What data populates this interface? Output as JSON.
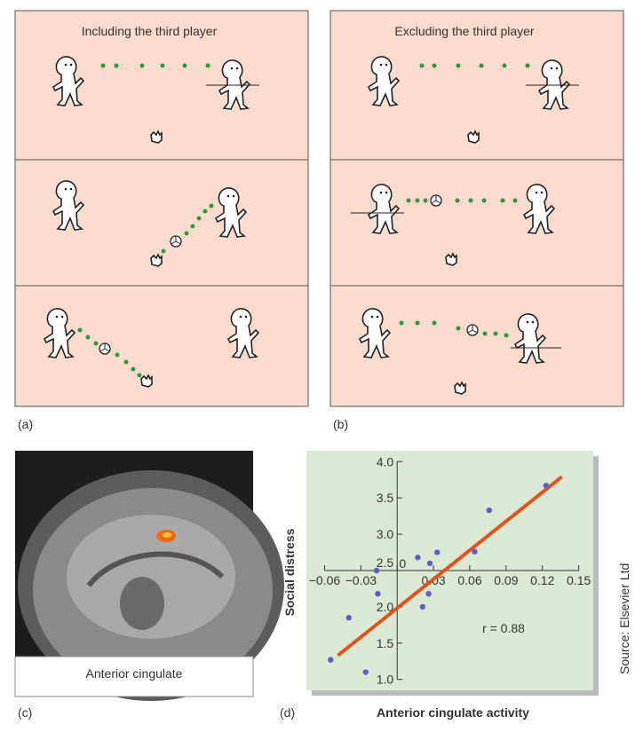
{
  "panel_a": {
    "title": "Including the third player",
    "label": "(a)"
  },
  "panel_b": {
    "title": "Excluding the third player",
    "label": "(b)"
  },
  "panel_c": {
    "caption": "Anterior cingulate",
    "label": "(c)"
  },
  "panel_d": {
    "label": "(d)"
  },
  "source": "Source: Elsevier Ltd",
  "chart_data": {
    "type": "scatter",
    "x_label": "Anterior cingulate activity",
    "y_label": "Social distress",
    "annotation": "r = 0.88",
    "x": [
      -0.055,
      -0.04,
      -0.026,
      -0.017,
      -0.016,
      0.017,
      0.027,
      0.033,
      0.021,
      0.026,
      0.064,
      0.076,
      0.123
    ],
    "values": [
      1.27,
      1.85,
      1.1,
      2.5,
      2.18,
      2.68,
      2.6,
      2.75,
      2.0,
      2.18,
      2.76,
      3.33,
      3.67
    ],
    "color": "#5b5fc7",
    "fit": {
      "x": [
        -0.049,
        0.136
      ],
      "y": [
        1.33,
        3.79
      ],
      "color": "#e2521c"
    },
    "xlim": [
      -0.075,
      0.162
    ],
    "ylim": [
      0.85,
      4.15
    ],
    "xticks": [
      {
        "value": -0.06,
        "label": "−0.06"
      },
      {
        "value": -0.03,
        "label": "−0.03"
      },
      0,
      0.03,
      0.06,
      0.09,
      0.12,
      0.15
    ],
    "yticks": [
      {
        "value": 1,
        "label": "1.0"
      },
      1.5,
      {
        "value": 2,
        "label": "2.0"
      },
      2.5,
      {
        "value": 3,
        "label": "3.0"
      },
      3.5,
      {
        "value": 4,
        "label": "4.0"
      }
    ]
  }
}
